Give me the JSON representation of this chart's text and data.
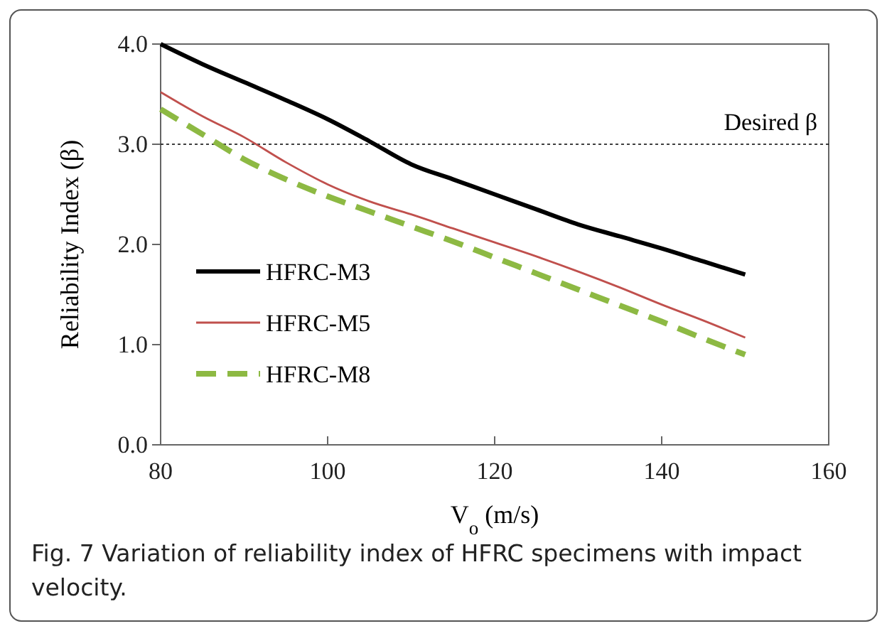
{
  "chart_data": {
    "type": "line",
    "xlabel": "V$_{o}$ (m/s)",
    "ylabel": "Reliability Index (β)",
    "xlim": [
      80,
      160
    ],
    "xticks": [
      80,
      100,
      120,
      140,
      160
    ],
    "ylim": [
      0,
      4
    ],
    "yticks": [
      {
        "value": 0,
        "label": "0.0"
      },
      {
        "value": 1,
        "label": "1.0"
      },
      {
        "value": 2,
        "label": "2.0"
      },
      {
        "value": 3,
        "label": "3.0"
      },
      {
        "value": 4,
        "label": "4.0"
      }
    ],
    "x": [
      80,
      85,
      90,
      95,
      100,
      105,
      110,
      115,
      120,
      125,
      130,
      135,
      140,
      145,
      150
    ],
    "series": [
      {
        "name": "HFRC-M3",
        "color": "#000000",
        "line_style": "solid",
        "values": [
          4.0,
          3.8,
          3.62,
          3.44,
          3.25,
          3.03,
          2.8,
          2.65,
          2.5,
          2.35,
          2.2,
          2.08,
          1.96,
          1.83,
          1.7
        ]
      },
      {
        "name": "HFRC-M5",
        "color": "#c0504d",
        "line_style": "solid",
        "values": [
          3.52,
          3.28,
          3.07,
          2.82,
          2.6,
          2.43,
          2.3,
          2.16,
          2.02,
          1.88,
          1.73,
          1.57,
          1.4,
          1.24,
          1.07
        ]
      },
      {
        "name": "HFRC-M8",
        "color": "#8db943",
        "line_style": "dashed",
        "values": [
          3.35,
          3.1,
          2.85,
          2.65,
          2.48,
          2.33,
          2.18,
          2.03,
          1.87,
          1.71,
          1.55,
          1.39,
          1.23,
          1.06,
          0.9
        ]
      }
    ],
    "ref_lines": [
      {
        "axis": "y",
        "value": 3,
        "label": "Desired β",
        "line_style": "dotted",
        "color": "#000000"
      }
    ],
    "legend": "bottom left",
    "grid": false,
    "annotations": [
      "Fig. 7  Variation of reliability index of HFRC specimens with impact velocity."
    ]
  }
}
